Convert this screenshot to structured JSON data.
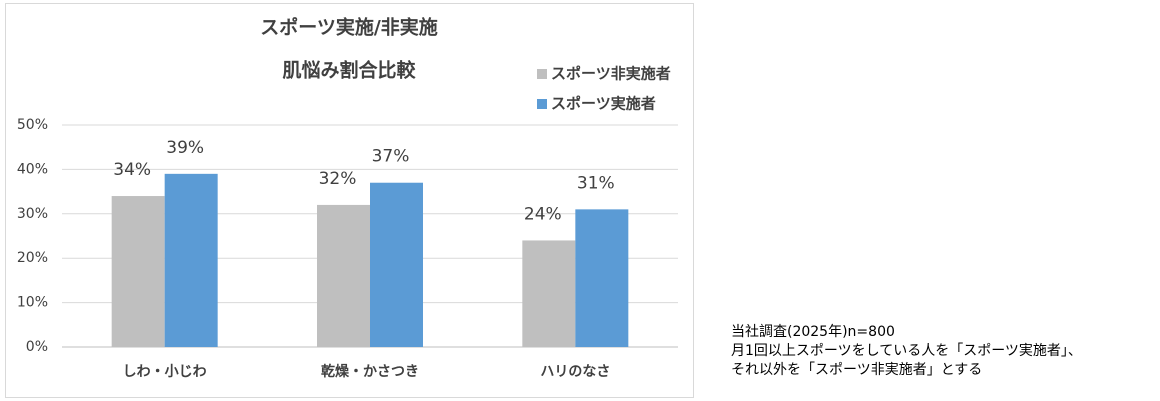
{
  "chart_data": {
    "type": "bar",
    "title": "スポーツ実施/非実施",
    "subtitle": "肌悩み割合比較",
    "categories": [
      "しわ・小じわ",
      "乾燥・かさつき",
      "ハリのなさ"
    ],
    "series": [
      {
        "name": "スポーツ非実施者",
        "color": "#bfbfbf",
        "values": [
          34,
          32,
          24
        ],
        "value_labels": [
          "34%",
          "32%",
          "24%"
        ]
      },
      {
        "name": "スポーツ実施者",
        "color": "#5b9bd5",
        "values": [
          39,
          37,
          31
        ],
        "value_labels": [
          "39%",
          "37%",
          "31%"
        ]
      }
    ],
    "ylim": [
      0,
      50
    ],
    "yticks": [
      {
        "value": 0,
        "label": "0%"
      },
      {
        "value": 10,
        "label": "10%"
      },
      {
        "value": 20,
        "label": "20%"
      },
      {
        "value": 30,
        "label": "30%"
      },
      {
        "value": 40,
        "label": "40%"
      },
      {
        "value": 50,
        "label": "50%"
      }
    ],
    "grid": true
  },
  "notes": [
    "当社調査(2025年)n=800",
    "月1回以上スポーツをしている人を「スポーツ実施者」、",
    "それ以外を「スポーツ非実施者」とする"
  ]
}
